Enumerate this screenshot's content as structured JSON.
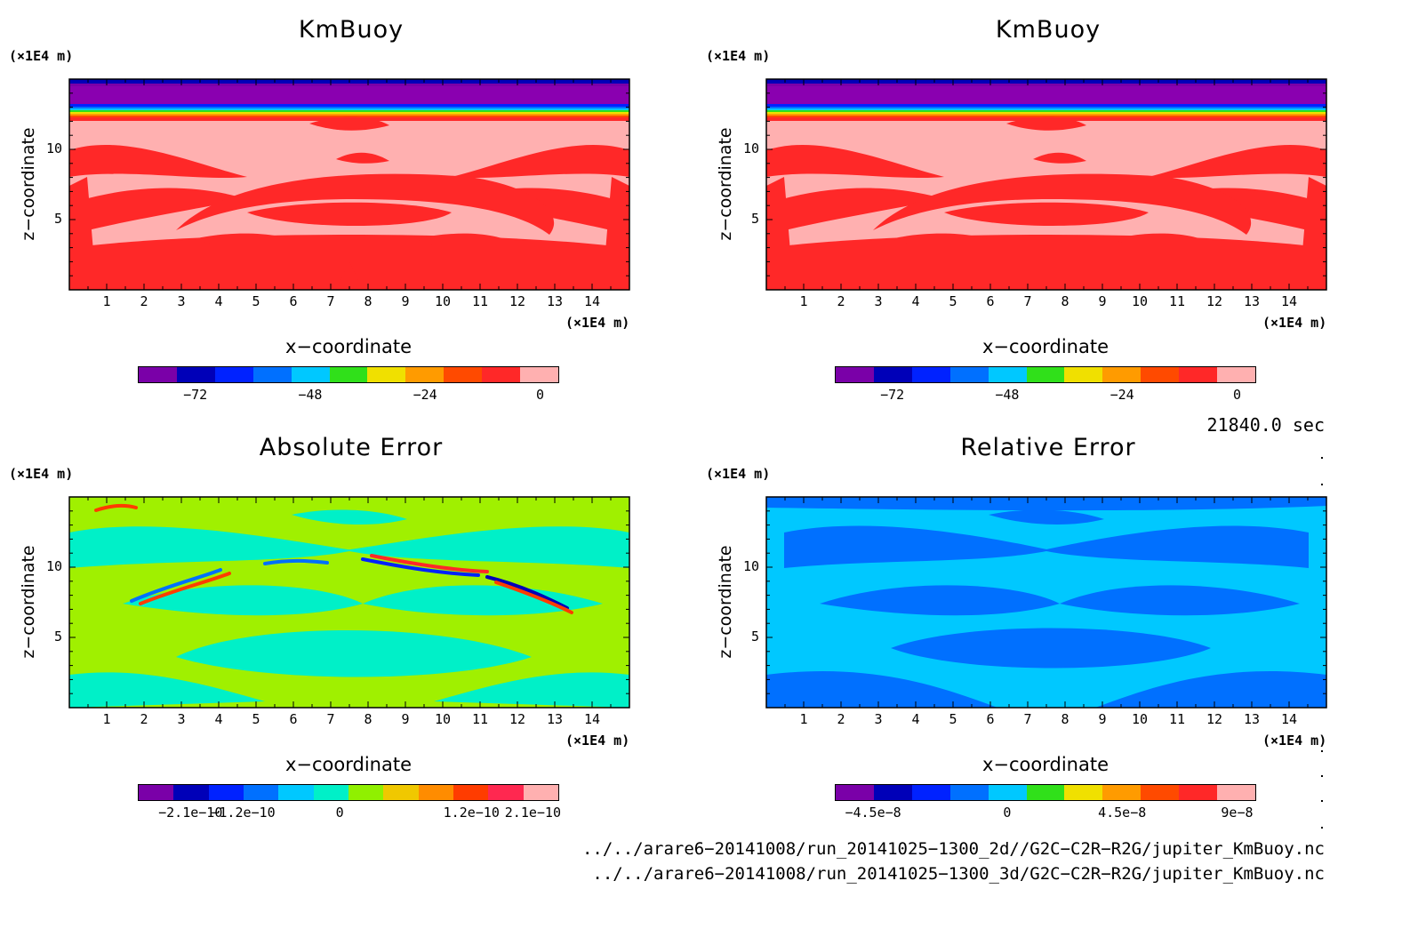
{
  "chart_data": [
    {
      "type": "heatmap",
      "title": "KmBuoy",
      "xlabel": "x−coordinate",
      "ylabel": "z−coordinate",
      "x_unit": "(×1E4 m)",
      "y_unit": "(×1E4 m)",
      "xlim": [
        0,
        15
      ],
      "ylim": [
        0,
        15
      ],
      "x_ticks": [
        "1",
        "2",
        "3",
        "4",
        "5",
        "6",
        "7",
        "8",
        "9",
        "10",
        "11",
        "12",
        "13",
        "14"
      ],
      "y_ticks": [
        "5",
        "10"
      ],
      "colorbar": {
        "colors": [
          "#7a00a8",
          "#0000b8",
          "#0022ff",
          "#0070ff",
          "#00c8ff",
          "#30e01a",
          "#f0e000",
          "#ff9b00",
          "#ff4a00",
          "#ff2828",
          "#ffb0b0"
        ],
        "tick_labels": [
          "−72",
          "−48",
          "−24",
          "0"
        ]
      },
      "style": "kmbuoy"
    },
    {
      "type": "heatmap",
      "title": "KmBuoy",
      "xlabel": "x−coordinate",
      "ylabel": "z−coordinate",
      "x_unit": "(×1E4 m)",
      "y_unit": "(×1E4 m)",
      "xlim": [
        0,
        15
      ],
      "ylim": [
        0,
        15
      ],
      "x_ticks": [
        "1",
        "2",
        "3",
        "4",
        "5",
        "6",
        "7",
        "8",
        "9",
        "10",
        "11",
        "12",
        "13",
        "14"
      ],
      "y_ticks": [
        "5",
        "10"
      ],
      "colorbar": {
        "colors": [
          "#7a00a8",
          "#0000b8",
          "#0022ff",
          "#0070ff",
          "#00c8ff",
          "#30e01a",
          "#f0e000",
          "#ff9b00",
          "#ff4a00",
          "#ff2828",
          "#ffb0b0"
        ],
        "tick_labels": [
          "−72",
          "−48",
          "−24",
          "0"
        ]
      },
      "style": "kmbuoy"
    },
    {
      "type": "heatmap",
      "title": "Absolute Error",
      "xlabel": "x−coordinate",
      "ylabel": "z−coordinate",
      "x_unit": "(×1E4 m)",
      "y_unit": "(×1E4 m)",
      "xlim": [
        0,
        15
      ],
      "ylim": [
        0,
        15
      ],
      "x_ticks": [
        "1",
        "2",
        "3",
        "4",
        "5",
        "6",
        "7",
        "8",
        "9",
        "10",
        "11",
        "12",
        "13",
        "14"
      ],
      "y_ticks": [
        "5",
        "10"
      ],
      "colorbar": {
        "colors": [
          "#7a00a8",
          "#0000b8",
          "#0022ff",
          "#0070ff",
          "#00c8ff",
          "#00f0c8",
          "#90f000",
          "#f0c800",
          "#ff8c00",
          "#ff3c00",
          "#ff2850",
          "#ffb0b0"
        ],
        "tick_labels": [
          "−2.1e−10",
          "−1.2e−10",
          "0",
          "1.2e−10",
          "2.1e−10"
        ]
      },
      "style": "abserr"
    },
    {
      "type": "heatmap",
      "title": "Relative Error",
      "xlabel": "x−coordinate",
      "ylabel": "z−coordinate",
      "x_unit": "(×1E4 m)",
      "y_unit": "(×1E4 m)",
      "xlim": [
        0,
        15
      ],
      "ylim": [
        0,
        15
      ],
      "x_ticks": [
        "1",
        "2",
        "3",
        "4",
        "5",
        "6",
        "7",
        "8",
        "9",
        "10",
        "11",
        "12",
        "13",
        "14"
      ],
      "y_ticks": [
        "5",
        "10"
      ],
      "colorbar": {
        "colors": [
          "#7a00a8",
          "#0000b8",
          "#0022ff",
          "#0070ff",
          "#00c8ff",
          "#30e01a",
          "#f0e000",
          "#ff9b00",
          "#ff4a00",
          "#ff2828",
          "#ffb0b0"
        ],
        "tick_labels": [
          "−4.5e−8",
          "0",
          "4.5e−8",
          "9e−8"
        ]
      },
      "style": "relerr"
    }
  ],
  "footer": {
    "time": "21840.0 sec",
    "path1": "../../arare6−20141008/run_20141025−1300_2d//G2C−C2R−R2G/jupiter_KmBuoy.nc",
    "path2": "../../arare6−20141008/run_20141025−1300_3d/G2C−C2R−R2G/jupiter_KmBuoy.nc"
  }
}
